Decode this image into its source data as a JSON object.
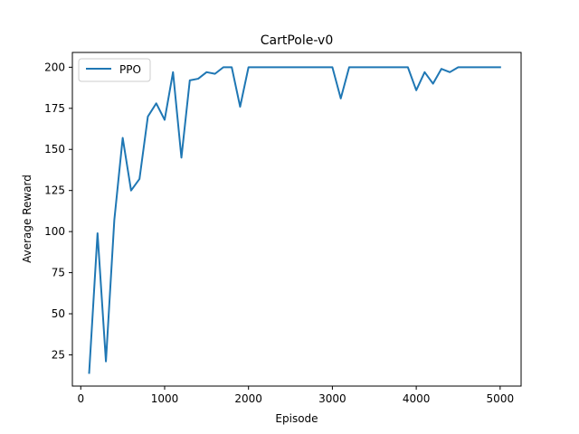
{
  "chart_data": {
    "type": "line",
    "title": "CartPole-v0",
    "xlabel": "Episode",
    "ylabel": "Average Reward",
    "xlim": [
      -100,
      5250
    ],
    "ylim": [
      6,
      209
    ],
    "xticks": [
      0,
      1000,
      2000,
      3000,
      4000,
      5000
    ],
    "yticks": [
      25,
      50,
      75,
      100,
      125,
      150,
      175,
      200
    ],
    "grid": false,
    "legend_position": "top-left",
    "series": [
      {
        "name": "PPO",
        "color": "#1f77b4",
        "x": [
          100,
          200,
          300,
          400,
          500,
          600,
          700,
          800,
          900,
          1000,
          1100,
          1200,
          1300,
          1400,
          1500,
          1600,
          1700,
          1800,
          1900,
          2000,
          2100,
          2200,
          2300,
          2400,
          2500,
          2600,
          2700,
          2800,
          2900,
          3000,
          3100,
          3200,
          3300,
          3400,
          3500,
          3600,
          3700,
          3800,
          3900,
          4000,
          4100,
          4200,
          4300,
          4400,
          4500,
          4600,
          4700,
          4800,
          4900,
          5000
        ],
        "y": [
          14,
          99,
          21,
          107,
          157,
          125,
          132,
          170,
          178,
          168,
          197,
          145,
          192,
          193,
          197,
          196,
          200,
          200,
          176,
          200,
          200,
          200,
          200,
          200,
          200,
          200,
          200,
          200,
          200,
          200,
          181,
          200,
          200,
          200,
          200,
          200,
          200,
          200,
          200,
          186,
          197,
          190,
          199,
          197,
          200,
          200,
          200,
          200,
          200,
          200
        ]
      }
    ]
  }
}
